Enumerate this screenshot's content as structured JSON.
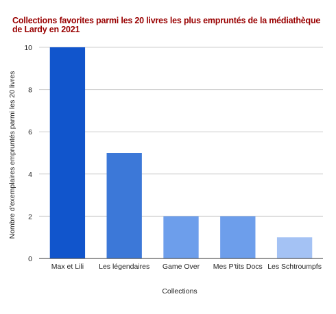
{
  "chart_data": {
    "type": "bar",
    "title": "Collections favorites parmi les 20 livres les plus empruntés de la médiathèque de Lardy en 2021",
    "xlabel": "Collections",
    "ylabel": "Nombre d'exemplaires empruntés parmi les 20 livres",
    "categories": [
      "Max et Lili",
      "Les légendaires",
      "Game Over",
      "Mes P'tits Docs",
      "Les Schtroumpfs"
    ],
    "values": [
      10,
      5,
      2,
      2,
      1
    ],
    "ylim": [
      0,
      10
    ],
    "yticks": [
      0,
      2,
      4,
      6,
      8,
      10
    ],
    "grid": true,
    "legend": "none",
    "bar_colors": [
      "#1155cc",
      "#3c78d8",
      "#6d9eeb",
      "#6d9eeb",
      "#a4c2f4"
    ]
  }
}
